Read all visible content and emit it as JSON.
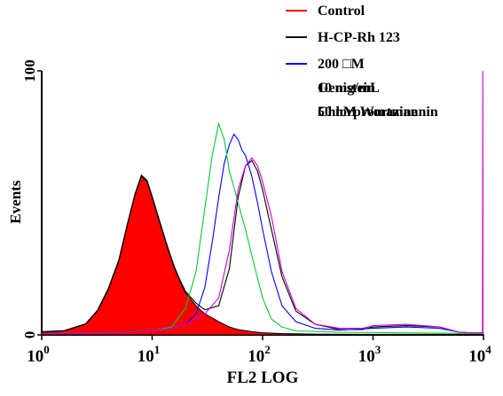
{
  "chart_data": {
    "type": "histogram",
    "xlabel": "FL2 LOG",
    "ylabel": "Events",
    "x_scale": "log",
    "xlim": [
      1,
      10000
    ],
    "ylim": [
      0,
      100
    ],
    "x_ticks": [
      {
        "base": "10",
        "exp": "0",
        "value": 1
      },
      {
        "base": "10",
        "exp": "1",
        "value": 10
      },
      {
        "base": "10",
        "exp": "2",
        "value": 100
      },
      {
        "base": "10",
        "exp": "3",
        "value": 1000
      },
      {
        "base": "10",
        "exp": "4",
        "value": 10000
      }
    ],
    "y_ticks": [
      {
        "label": "0",
        "value": 0
      },
      {
        "label": "100",
        "value": 100
      }
    ],
    "legend": {
      "position": "top-right",
      "entries": [
        {
          "label": "Control",
          "color": "#ff0000"
        },
        {
          "label": "H-CP-Rh 123",
          "color": "#000000"
        },
        {
          "label": "200 □M",
          "color": "#0000ff"
        },
        {
          "label": "Genistein",
          "color": "#00cc33"
        },
        {
          "label": "10 mg/mL",
          "color": "#00cc33"
        },
        {
          "label": "Chlorpromazine",
          "color": "#cc00cc"
        },
        {
          "label": "50 nM Wortmannin",
          "color": "#cc00cc"
        }
      ]
    },
    "series": [
      {
        "name": "Control",
        "color": "#ff0000",
        "filled": true,
        "points": [
          [
            1,
            1
          ],
          [
            1.6,
            1.5
          ],
          [
            2.5,
            4
          ],
          [
            3.2,
            9
          ],
          [
            4,
            17
          ],
          [
            5,
            28
          ],
          [
            6,
            42
          ],
          [
            7,
            53
          ],
          [
            8,
            60
          ],
          [
            9,
            58
          ],
          [
            10,
            52
          ],
          [
            12,
            41
          ],
          [
            14,
            32
          ],
          [
            16,
            25
          ],
          [
            18,
            20
          ],
          [
            20,
            16
          ],
          [
            25,
            11
          ],
          [
            30,
            8
          ],
          [
            40,
            5
          ],
          [
            50,
            3
          ],
          [
            60,
            2
          ],
          [
            80,
            1.2
          ],
          [
            100,
            0.8
          ],
          [
            150,
            0.5
          ],
          [
            300,
            0.3
          ],
          [
            1000,
            0.2
          ],
          [
            3000,
            0.2
          ],
          [
            10000,
            0.2
          ]
        ]
      },
      {
        "name": "H-CP-Rh 123",
        "color": "#000000",
        "points": [
          [
            1,
            1.2
          ],
          [
            1.6,
            1.6
          ],
          [
            2.5,
            4.2
          ],
          [
            3.2,
            9.3
          ],
          [
            4,
            17.5
          ],
          [
            5,
            28.5
          ],
          [
            6,
            42.5
          ],
          [
            7,
            53.5
          ],
          [
            8,
            60.5
          ],
          [
            9,
            58.5
          ],
          [
            10,
            52.5
          ],
          [
            12,
            41.5
          ],
          [
            14,
            32.5
          ],
          [
            16,
            25.5
          ],
          [
            18,
            20.5
          ],
          [
            20,
            16.5
          ],
          [
            25,
            12
          ],
          [
            30,
            9.5
          ],
          [
            40,
            11
          ],
          [
            50,
            25
          ],
          [
            60,
            52
          ],
          [
            70,
            64
          ],
          [
            80,
            66
          ],
          [
            90,
            62
          ],
          [
            100,
            55
          ],
          [
            120,
            40
          ],
          [
            150,
            22
          ],
          [
            200,
            9
          ],
          [
            300,
            4
          ],
          [
            500,
            2
          ],
          [
            800,
            2
          ],
          [
            1000,
            3
          ],
          [
            2000,
            3.5
          ],
          [
            4000,
            3
          ],
          [
            6000,
            1
          ],
          [
            10000,
            0.5
          ]
        ]
      },
      {
        "name": "200 □M Genistein",
        "color": "#0000ff",
        "points": [
          [
            1,
            0.5
          ],
          [
            5,
            1
          ],
          [
            10,
            1.5
          ],
          [
            15,
            2.5
          ],
          [
            20,
            4
          ],
          [
            25,
            8
          ],
          [
            30,
            18
          ],
          [
            35,
            35
          ],
          [
            40,
            52
          ],
          [
            45,
            65
          ],
          [
            50,
            72
          ],
          [
            55,
            76
          ],
          [
            60,
            74
          ],
          [
            65,
            70
          ],
          [
            70,
            68
          ],
          [
            80,
            60
          ],
          [
            90,
            50
          ],
          [
            100,
            40
          ],
          [
            120,
            24
          ],
          [
            150,
            11
          ],
          [
            200,
            5
          ],
          [
            300,
            2.5
          ],
          [
            500,
            1.8
          ],
          [
            1000,
            2.5
          ],
          [
            2000,
            3
          ],
          [
            4000,
            2.5
          ],
          [
            6000,
            1
          ],
          [
            10000,
            0.5
          ]
        ]
      },
      {
        "name": "10 mg/mL Chlorpromazine",
        "color": "#00cc33",
        "points": [
          [
            1,
            0.5
          ],
          [
            5,
            1
          ],
          [
            10,
            1.5
          ],
          [
            15,
            3
          ],
          [
            20,
            10
          ],
          [
            25,
            24
          ],
          [
            30,
            48
          ],
          [
            35,
            68
          ],
          [
            40,
            80
          ],
          [
            45,
            74
          ],
          [
            50,
            62
          ],
          [
            55,
            56
          ],
          [
            60,
            50
          ],
          [
            70,
            40
          ],
          [
            80,
            30
          ],
          [
            100,
            14
          ],
          [
            120,
            6
          ],
          [
            150,
            3
          ],
          [
            200,
            1.5
          ],
          [
            500,
            1
          ],
          [
            10000,
            0.5
          ]
        ]
      },
      {
        "name": "50 nM Wortmannin",
        "color": "#cc00cc",
        "points": [
          [
            1,
            0.5
          ],
          [
            5,
            1
          ],
          [
            10,
            1.5
          ],
          [
            15,
            2.5
          ],
          [
            20,
            4
          ],
          [
            25,
            6
          ],
          [
            30,
            8
          ],
          [
            40,
            14
          ],
          [
            50,
            32
          ],
          [
            60,
            55
          ],
          [
            70,
            64
          ],
          [
            80,
            67
          ],
          [
            90,
            64
          ],
          [
            100,
            58
          ],
          [
            120,
            45
          ],
          [
            150,
            24
          ],
          [
            200,
            10
          ],
          [
            300,
            4
          ],
          [
            500,
            2.5
          ],
          [
            800,
            2.5
          ],
          [
            1000,
            3.5
          ],
          [
            2000,
            4
          ],
          [
            4000,
            3
          ],
          [
            6000,
            1
          ],
          [
            8000,
            0.8
          ],
          [
            9800,
            0.8
          ],
          [
            9850,
            100
          ],
          [
            9900,
            0.5
          ],
          [
            10000,
            0.5
          ]
        ]
      }
    ]
  }
}
